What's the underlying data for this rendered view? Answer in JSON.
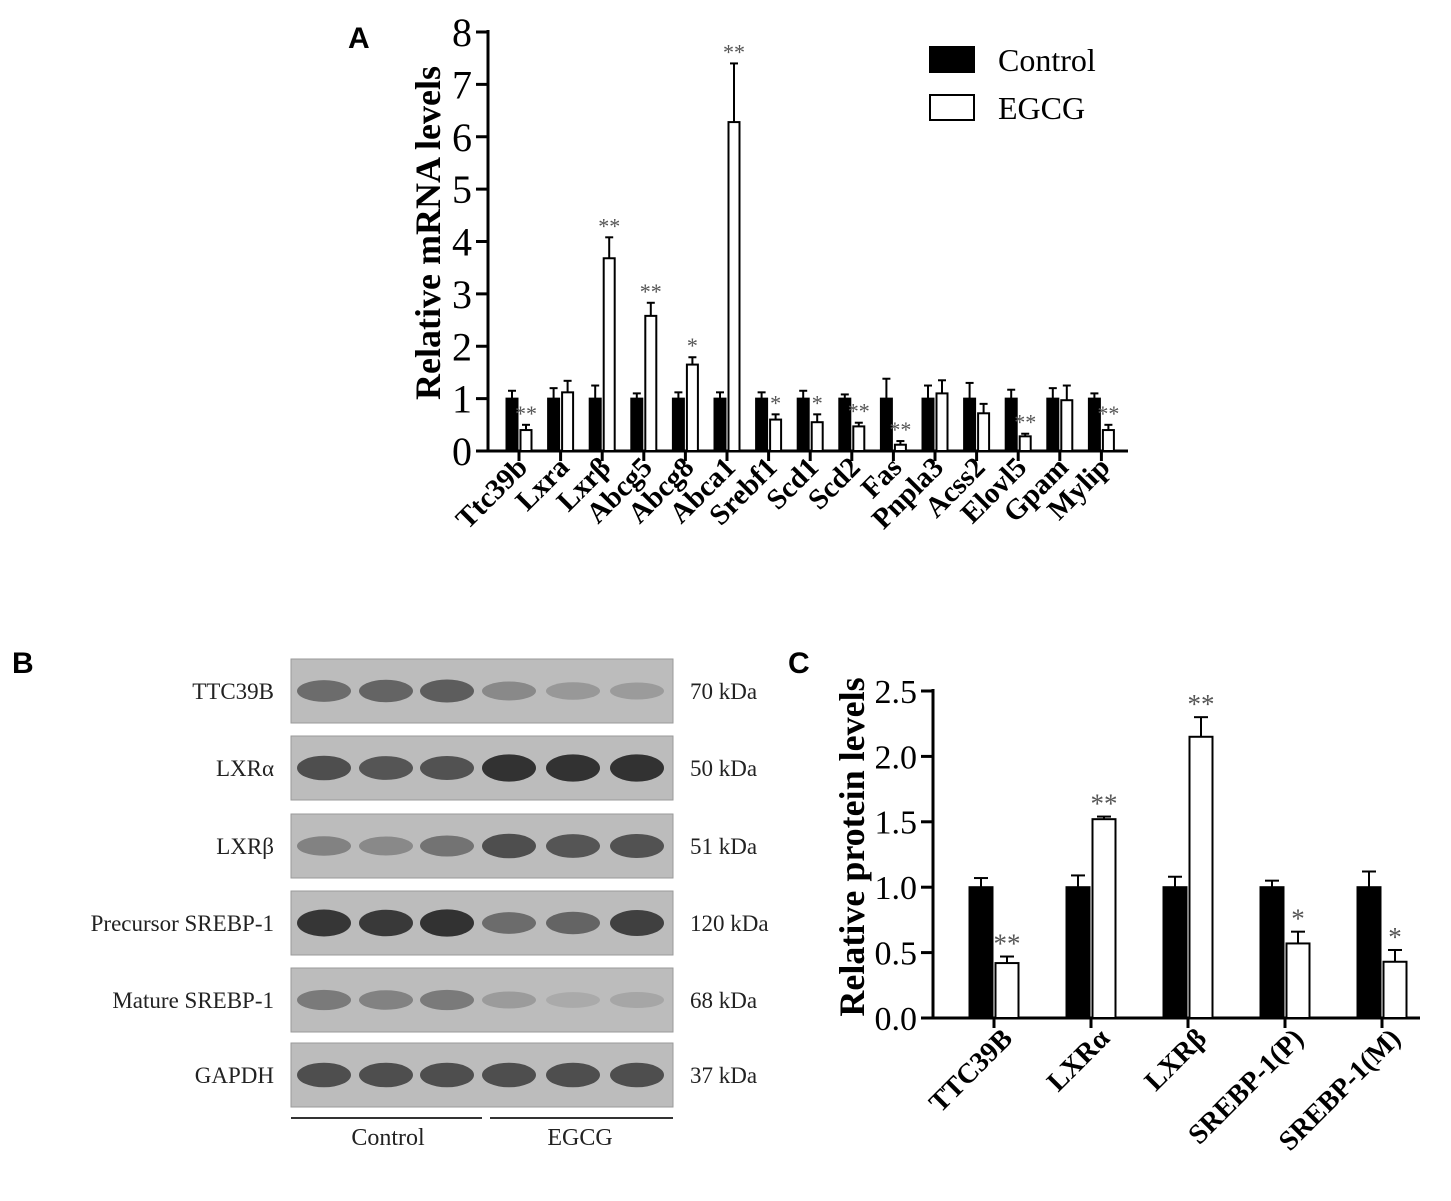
{
  "panels": {
    "a_letter": "A",
    "b_letter": "B",
    "c_letter": "C"
  },
  "colors": {
    "control_fill": "#000000",
    "egcg_fill": "#ffffff",
    "axis": "#000000",
    "significance": "#555555",
    "blot_background": "#bcbcbc",
    "band": "#2a2a2a"
  },
  "chart_data": [
    {
      "type": "bar",
      "panel": "A",
      "ylabel": "Relative mRNA levels",
      "ylim": [
        0,
        8
      ],
      "yticks": [
        "0",
        "1",
        "2",
        "3",
        "4",
        "5",
        "6",
        "7",
        "8"
      ],
      "legend": [
        "Control",
        "EGCG"
      ],
      "legend_position": "top-right",
      "categories": [
        "Ttc39b",
        "Lxra",
        "Lxrβ",
        "Abcg5",
        "Abcg8",
        "Abca1",
        "Srebf1",
        "Scd1",
        "Scd2",
        "Fas",
        "Pnpla3",
        "Acss2",
        "Elovl5",
        "Gpam",
        "Mylip"
      ],
      "series": [
        {
          "name": "Control",
          "values": [
            1.0,
            1.0,
            1.0,
            1.0,
            1.0,
            1.0,
            1.0,
            1.0,
            1.0,
            1.0,
            1.0,
            1.0,
            1.0,
            1.0,
            1.0
          ],
          "errors": [
            0.15,
            0.2,
            0.25,
            0.1,
            0.12,
            0.12,
            0.12,
            0.15,
            0.08,
            0.38,
            0.25,
            0.3,
            0.17,
            0.2,
            0.1
          ]
        },
        {
          "name": "EGCG",
          "values": [
            0.4,
            1.12,
            3.68,
            2.58,
            1.65,
            6.28,
            0.6,
            0.55,
            0.47,
            0.12,
            1.1,
            0.72,
            0.28,
            0.97,
            0.4
          ],
          "errors": [
            0.1,
            0.22,
            0.4,
            0.25,
            0.14,
            1.12,
            0.1,
            0.15,
            0.07,
            0.07,
            0.25,
            0.18,
            0.05,
            0.28,
            0.1
          ]
        }
      ],
      "significance": [
        "**",
        "",
        "**",
        "**",
        "*",
        "**",
        "*",
        "*",
        "**",
        "**",
        "",
        "",
        "**",
        "",
        "**"
      ]
    },
    {
      "type": "bar",
      "panel": "C",
      "ylabel": "Relative protein levels",
      "ylim": [
        0,
        2.5
      ],
      "yticks": [
        "0.0",
        "0.5",
        "1.0",
        "1.5",
        "2.0",
        "2.5"
      ],
      "categories": [
        "TTC39B",
        "LXRα",
        "LXRβ",
        "SREBP-1(P)",
        "SREBP-1(M)"
      ],
      "series": [
        {
          "name": "Control",
          "values": [
            1.0,
            1.0,
            1.0,
            1.0,
            1.0
          ],
          "errors": [
            0.07,
            0.09,
            0.08,
            0.05,
            0.12
          ]
        },
        {
          "name": "EGCG",
          "values": [
            0.42,
            1.52,
            2.15,
            0.57,
            0.43
          ],
          "errors": [
            0.05,
            0.02,
            0.15,
            0.09,
            0.09
          ]
        }
      ],
      "significance": [
        "**",
        "**",
        "**",
        "*",
        "*"
      ]
    }
  ],
  "blot": {
    "rows": [
      {
        "protein": "TTC39B",
        "size": "70 kDa",
        "intensities": [
          0.55,
          0.6,
          0.65,
          0.35,
          0.25,
          0.22
        ]
      },
      {
        "protein": "LXRα",
        "size": "50 kDa",
        "intensities": [
          0.75,
          0.7,
          0.72,
          0.95,
          0.95,
          0.95
        ]
      },
      {
        "protein": "LXRβ",
        "size": "51 kDa",
        "intensities": [
          0.4,
          0.35,
          0.5,
          0.75,
          0.7,
          0.72
        ]
      },
      {
        "protein": "Precursor SREBP-1",
        "size": "120 kDa",
        "intensities": [
          0.92,
          0.9,
          0.95,
          0.55,
          0.6,
          0.85
        ]
      },
      {
        "protein": "Mature SREBP-1",
        "size": "68 kDa",
        "intensities": [
          0.45,
          0.4,
          0.45,
          0.22,
          0.12,
          0.15
        ]
      },
      {
        "protein": "GAPDH",
        "size": "37 kDa",
        "intensities": [
          0.75,
          0.75,
          0.75,
          0.75,
          0.75,
          0.75
        ]
      }
    ],
    "groups": [
      "Control",
      "EGCG"
    ]
  }
}
